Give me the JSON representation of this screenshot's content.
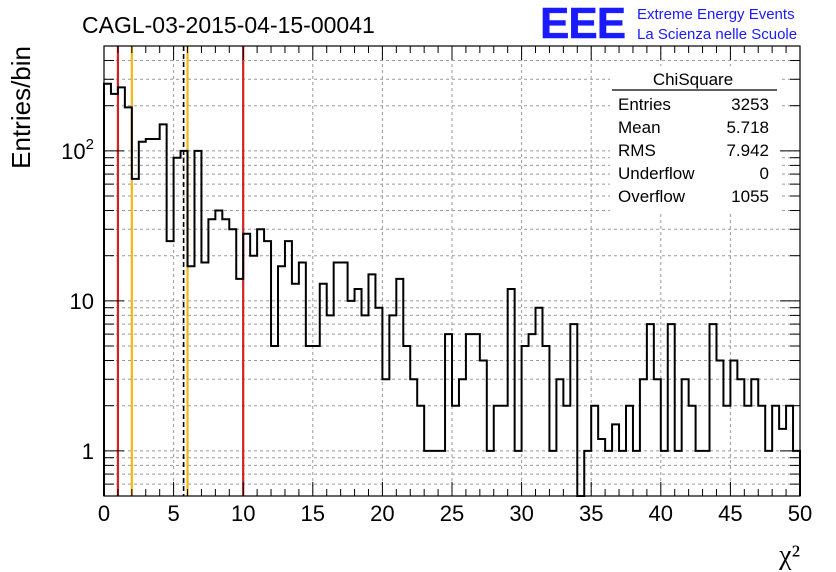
{
  "header": {
    "run_title": "CAGL-03-2015-04-15-00041",
    "logo_text": "EEE",
    "logo_line1": "Extreme Energy Events",
    "logo_line2": "La Scienza nelle Scuole",
    "logo_color": "#1a1aff"
  },
  "stats": {
    "name": "ChiSquare",
    "rows": [
      {
        "label": "Entries",
        "value": "3253"
      },
      {
        "label": "Mean",
        "value": "5.718"
      },
      {
        "label": "RMS",
        "value": "7.942"
      },
      {
        "label": "Underflow",
        "value": "0"
      },
      {
        "label": "Overflow",
        "value": "1055"
      }
    ]
  },
  "chart_data": {
    "type": "bar",
    "style": "step-histogram",
    "xlabel": "χ²",
    "ylabel": "Entries/bin",
    "xlim": [
      0,
      50
    ],
    "ylim": [
      0.5,
      500
    ],
    "yscale": "log",
    "grid": true,
    "bin_width": 0.5,
    "x_ticks": [
      "0",
      "5",
      "10",
      "15",
      "20",
      "25",
      "30",
      "35",
      "40",
      "45",
      "50"
    ],
    "y_ticks": [
      {
        "value": 1,
        "label": "1"
      },
      {
        "value": 10,
        "label": "10"
      },
      {
        "value": 100,
        "label": "10^2"
      }
    ],
    "values": [
      280,
      240,
      265,
      195,
      65,
      115,
      120,
      120,
      150,
      25,
      90,
      100,
      17,
      100,
      18,
      35,
      40,
      35,
      30,
      14,
      28,
      20,
      30,
      25,
      5,
      17,
      25,
      13,
      18,
      5,
      5,
      13,
      8,
      18,
      18,
      10,
      12,
      8,
      15,
      9,
      3,
      8,
      14,
      5,
      3,
      2,
      1,
      1,
      1,
      6,
      2,
      3,
      6,
      6,
      4,
      1,
      2,
      2,
      12,
      1,
      5,
      6,
      9,
      5,
      1,
      3,
      2,
      7,
      0.5,
      1,
      2,
      1.2,
      1,
      1.5,
      1,
      2,
      1,
      3,
      7,
      3,
      1,
      7,
      1,
      3,
      2,
      1,
      1,
      7,
      4,
      2,
      4,
      3,
      2,
      3,
      2,
      1,
      2,
      1.4,
      2,
      1
    ],
    "vlines": [
      {
        "x": 1,
        "color": "#d42020",
        "style": "solid"
      },
      {
        "x": 2,
        "color": "#f2b714",
        "style": "solid"
      },
      {
        "x": 5.718,
        "color": "#000000",
        "style": "dashed"
      },
      {
        "x": 6,
        "color": "#f2b714",
        "style": "solid"
      },
      {
        "x": 10,
        "color": "#d42020",
        "style": "solid"
      }
    ]
  }
}
